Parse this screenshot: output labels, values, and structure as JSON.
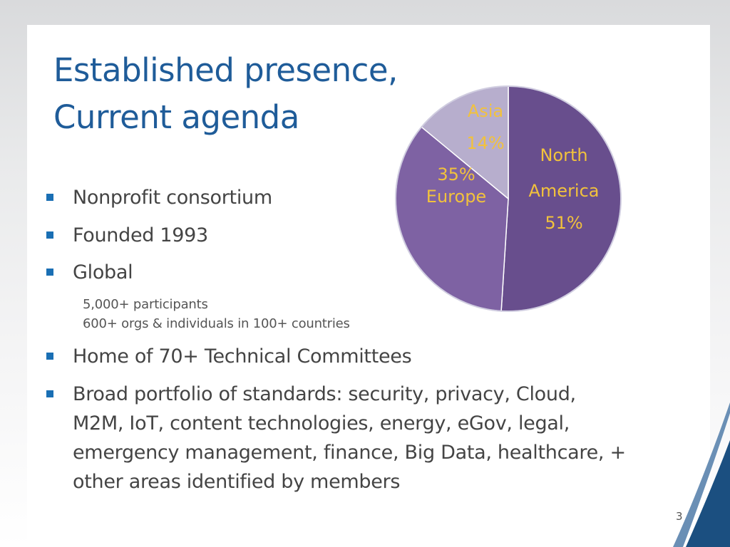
{
  "slide": {
    "title_line1": "Established presence,",
    "title_line2": "Current agenda",
    "bullets": [
      "Nonprofit consortium",
      "Founded 1993",
      "Global"
    ],
    "sub_items": [
      "5,000+ participants",
      "600+ orgs & individuals in 100+ countries"
    ],
    "bullets_after": [
      "Home of 70+ Technical Committees",
      "Broad portfolio of standards: security, privacy, Cloud, M2M, IoT, content technologies, energy, eGov, legal, emergency management, finance, Big Data, healthcare, + other areas identified by members"
    ],
    "page_number": "3"
  },
  "chart_data": {
    "type": "pie",
    "slices": [
      {
        "name": "North America",
        "label_lines": [
          "North",
          "America"
        ],
        "value": 51,
        "value_label": "51%",
        "color": "#684e8d"
      },
      {
        "name": "Europe",
        "label_lines": [
          "Europe"
        ],
        "value": 35,
        "value_label": "35%",
        "color": "#7e62a3"
      },
      {
        "name": "Asia",
        "label_lines": [
          "Asia"
        ],
        "value": 14,
        "value_label": "14%",
        "color": "#b7aecd"
      }
    ],
    "label_color": "#f2c23c"
  },
  "colors": {
    "title": "#1f5c99",
    "bullet_marker": "#1a6fb4",
    "body_text": "#444444",
    "accent_swoosh": "#1b4f80"
  }
}
